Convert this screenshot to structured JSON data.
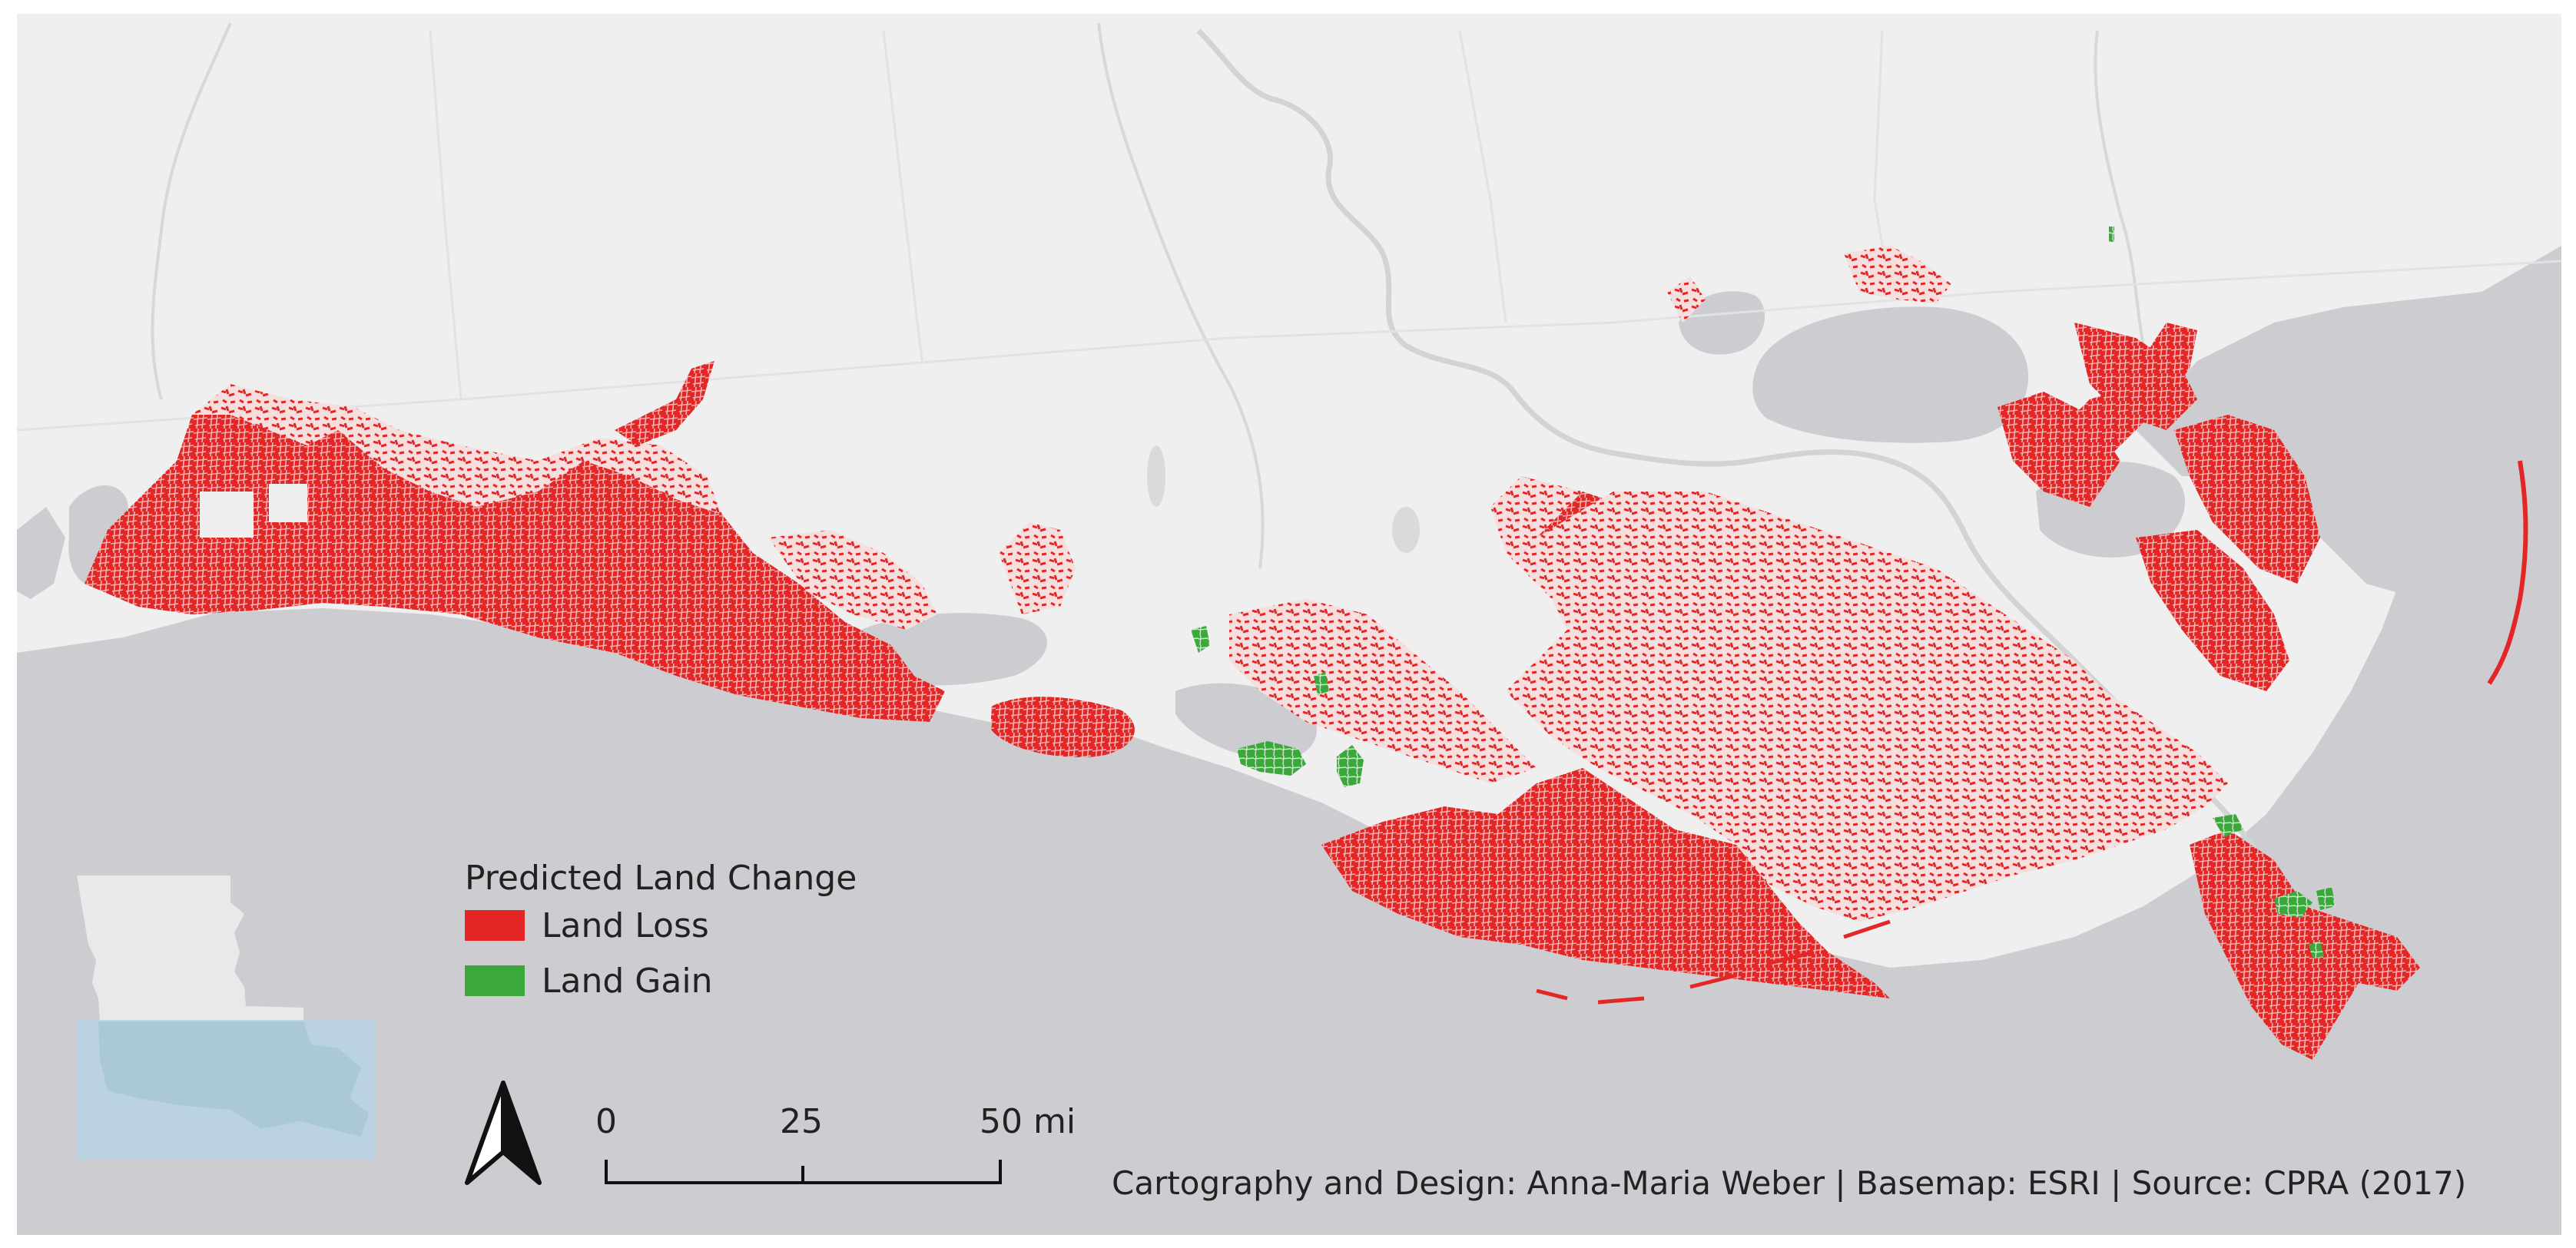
{
  "colors": {
    "land": "#efefef",
    "water": "#cdcdd1",
    "inset_highlight": "#b7d3e3",
    "land_loss": "#e32626",
    "land_gain": "#3aa83a"
  },
  "legend": {
    "title": "Predicted Land Change",
    "items": [
      {
        "label": "Land Loss",
        "color_key": "land_loss"
      },
      {
        "label": "Land Gain",
        "color_key": "land_gain"
      }
    ]
  },
  "scale_bar": {
    "ticks": [
      "0",
      "25",
      "50 mi"
    ]
  },
  "north_arrow": {
    "icon": "north-arrow-icon"
  },
  "credit": "Cartography and Design: Anna-Maria Weber | Basemap: ESRI | Source: CPRA (2017)"
}
